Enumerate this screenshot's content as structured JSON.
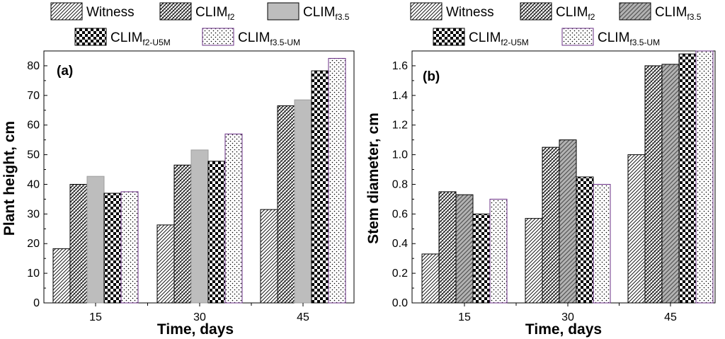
{
  "chart_data": [
    {
      "type": "bar",
      "panel_label": "(a)",
      "title": "",
      "xlabel": "Time, days",
      "ylabel": "Plant height, cm",
      "categories": [
        "15",
        "30",
        "45"
      ],
      "ylim": [
        0,
        85
      ],
      "yticks": [
        0,
        10,
        20,
        30,
        40,
        50,
        60,
        70,
        80
      ],
      "grid": false,
      "legend_position": "top",
      "series": [
        {
          "name": "Witness",
          "base": "Witness",
          "sub": "",
          "pattern": "diag",
          "values": [
            18.3,
            26.3,
            31.5
          ]
        },
        {
          "name": "CLIMf2",
          "base": "CLIM",
          "sub": "f2",
          "pattern": "zig",
          "values": [
            40,
            46.5,
            66.5
          ]
        },
        {
          "name": "CLIMf3.5",
          "base": "CLIM",
          "sub": "f3.5",
          "pattern": "solidgray",
          "values": [
            42.7,
            51.6,
            68.5
          ]
        },
        {
          "name": "CLIMf2-U5M",
          "base": "CLIM",
          "sub": "f2-U5M",
          "pattern": "check",
          "values": [
            37,
            47.8,
            78.3
          ]
        },
        {
          "name": "CLIMf3.5-UM",
          "base": "CLIM",
          "sub": "f3.5-UM",
          "pattern": "dots",
          "values": [
            37.5,
            57,
            82.5
          ]
        }
      ]
    },
    {
      "type": "bar",
      "panel_label": "(b)",
      "title": "",
      "xlabel": "Time, days",
      "ylabel": "Stem diameter, cm",
      "categories": [
        "15",
        "30",
        "45"
      ],
      "ylim": [
        0,
        1.7
      ],
      "yticks": [
        "0.0",
        "0.2",
        "0.4",
        "0.6",
        "0.8",
        "1.0",
        "1.2",
        "1.4",
        "1.6"
      ],
      "grid": false,
      "legend_position": "top",
      "series": [
        {
          "name": "Witness",
          "base": "Witness",
          "sub": "",
          "pattern": "diag",
          "values": [
            0.33,
            0.57,
            1.0
          ]
        },
        {
          "name": "CLIMf2",
          "base": "CLIM",
          "sub": "f2",
          "pattern": "zig",
          "values": [
            0.75,
            1.05,
            1.6
          ]
        },
        {
          "name": "CLIMf3.5",
          "base": "CLIM",
          "sub": "f3.5",
          "pattern": "grayhatch",
          "values": [
            0.73,
            1.1,
            1.61
          ]
        },
        {
          "name": "CLIMf2-U5M",
          "base": "CLIM",
          "sub": "f2-U5M",
          "pattern": "check",
          "values": [
            0.6,
            0.85,
            1.68
          ]
        },
        {
          "name": "CLIMf3.5-UM",
          "base": "CLIM",
          "sub": "f3.5-UM",
          "pattern": "dots",
          "values": [
            0.7,
            0.8,
            1.7
          ]
        }
      ]
    }
  ],
  "colors": {
    "axis": "#000000",
    "gray_fill": "#bdbdbd",
    "dots_border": "#6a2f86"
  }
}
